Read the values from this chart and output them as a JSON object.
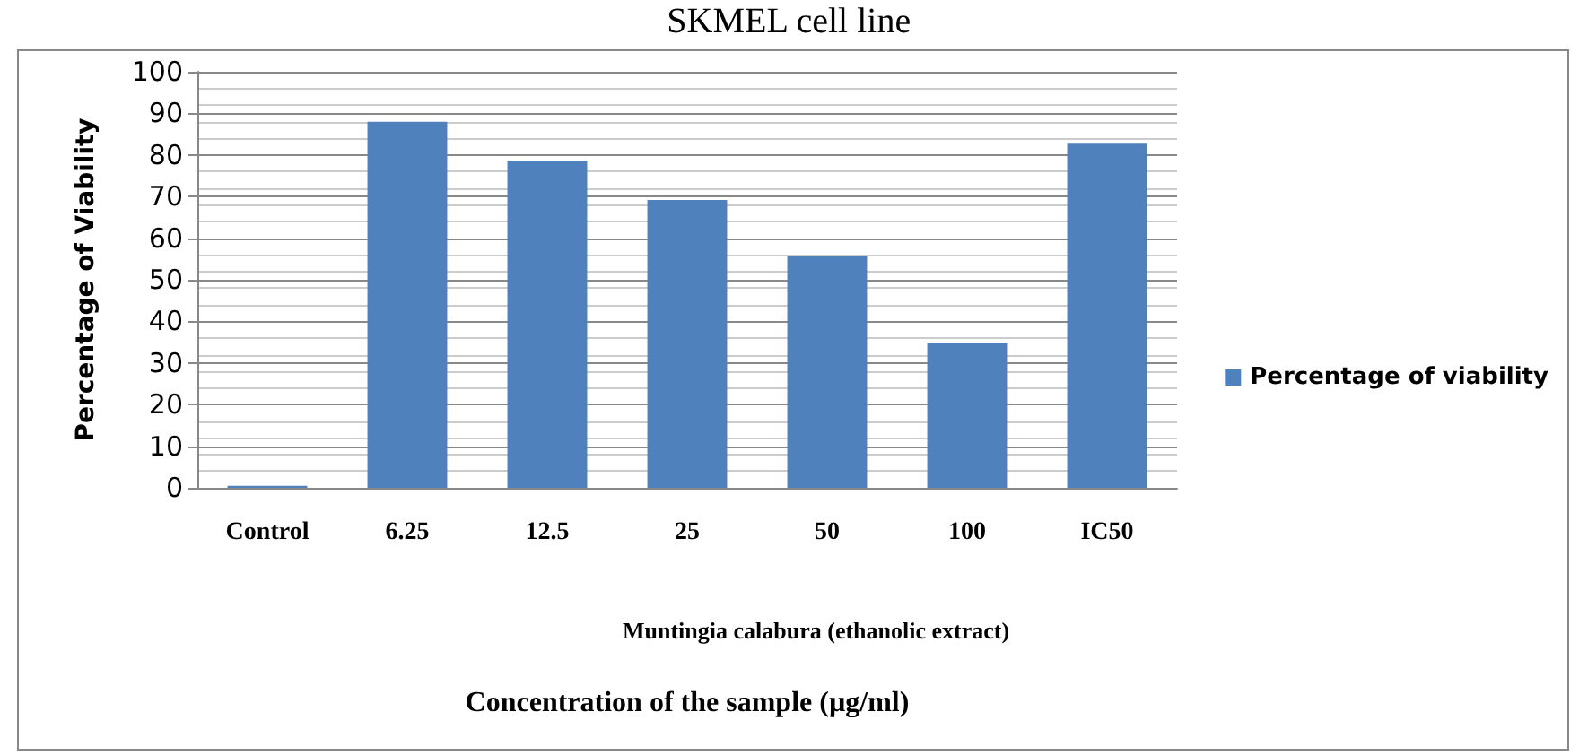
{
  "chart_data": {
    "type": "bar",
    "title": "SKMEL cell line",
    "xlabel": "Concentration of the sample (µg/ml)",
    "ylabel": "Percentage of Viability",
    "categories": [
      "Control",
      "6.25",
      "12.5",
      "25",
      "50",
      "100",
      "IC50"
    ],
    "series": [
      {
        "name": "Percentage of viability",
        "color": "#4f81bd",
        "values": [
          0.5,
          88,
          78.6,
          69.2,
          55.8,
          34.8,
          82.7
        ]
      }
    ],
    "ylim": [
      0,
      100
    ],
    "yticks": [
      0,
      10,
      20,
      30,
      40,
      50,
      60,
      70,
      80,
      90,
      100
    ],
    "grid": "y",
    "legend": "right",
    "annotations": [
      "Muntingia calabura (ethanolic extract)"
    ]
  }
}
